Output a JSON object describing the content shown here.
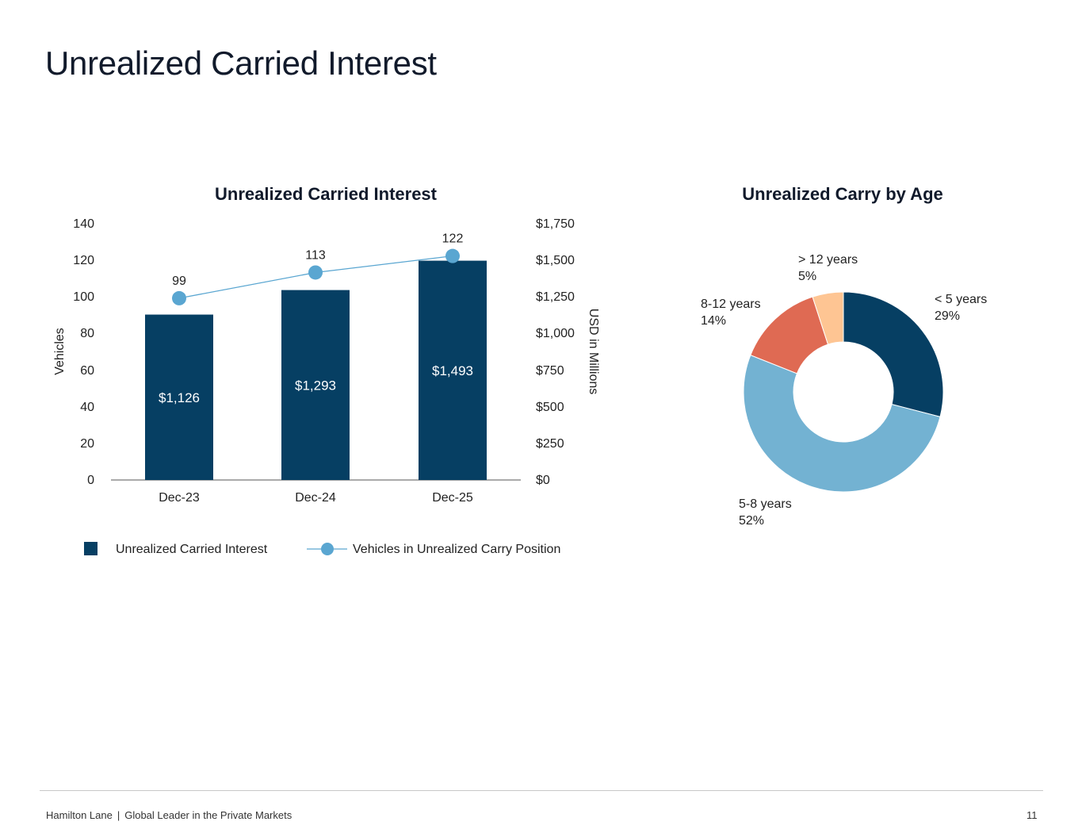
{
  "page": {
    "title": "Unrealized Carried Interest",
    "footer_company": "Hamilton Lane",
    "footer_divider": "|",
    "footer_tagline": "Global Leader in the Private Markets",
    "page_number": "11"
  },
  "colors": {
    "navy": "#063f63",
    "light_blue": "#5aa6d1",
    "sky": "#73b2d2",
    "coral": "#df6a53",
    "peach": "#fec593"
  },
  "chart_data": [
    {
      "type": "bar",
      "title": "Unrealized Carried Interest",
      "categories": [
        "Dec-23",
        "Dec-24",
        "Dec-25"
      ],
      "series": [
        {
          "name": "Unrealized Carried Interest",
          "type": "bar",
          "axis": "right",
          "values": [
            1126,
            1293,
            1493
          ],
          "labels": [
            "$1,126",
            "$1,293",
            "$1,493"
          ]
        },
        {
          "name": "Vehicles in Unrealized Carry Position",
          "type": "line",
          "axis": "left",
          "values": [
            99,
            113,
            122
          ],
          "labels": [
            "99",
            "113",
            "122"
          ]
        }
      ],
      "ylabel": "Vehicles",
      "y2label": "USD in Millions",
      "ylim": [
        0,
        140
      ],
      "y2lim": [
        0,
        1750
      ],
      "yticks": [
        "0",
        "20",
        "40",
        "60",
        "80",
        "100",
        "120",
        "140"
      ],
      "y2ticks": [
        "$0",
        "$250",
        "$500",
        "$750",
        "$1,000",
        "$1,250",
        "$1,500",
        "$1,750"
      ],
      "legend": "bottom",
      "grid": false
    },
    {
      "type": "pie",
      "title": "Unrealized Carry by Age",
      "donut": true,
      "categories": [
        "< 5 years",
        "5-8 years",
        "8-12 years",
        "> 12 years"
      ],
      "values": [
        29,
        52,
        14,
        5
      ],
      "labels": [
        "29%",
        "52%",
        "14%",
        "5%"
      ]
    }
  ]
}
